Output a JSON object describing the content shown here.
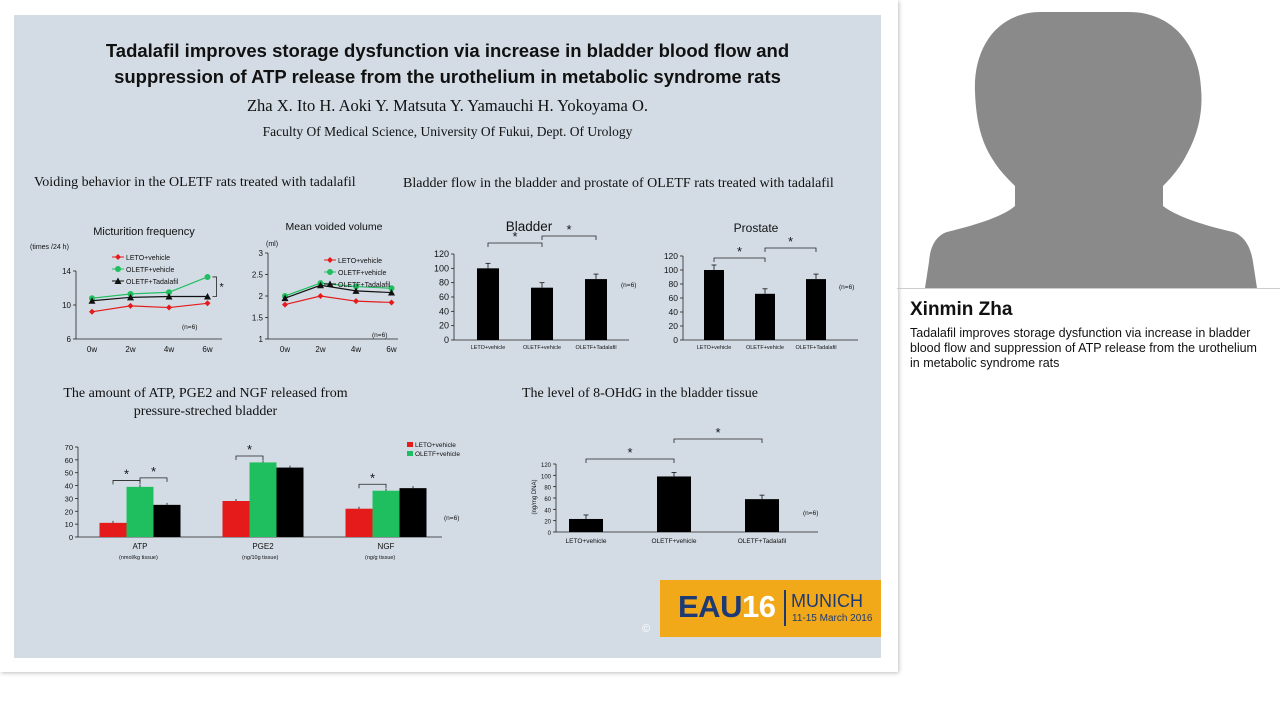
{
  "slide": {
    "title_line1": "Tadalafil improves storage dysfunction via increase in bladder blood flow and",
    "title_line2": "suppression of ATP release from the urothelium in metabolic syndrome rats",
    "authors": "Zha X.  Ito H.   Aoki Y.  Matsuta Y.  Yamauchi H.  Yokoyama O.",
    "affiliation": "Faculty Of Medical Science, University Of Fukui, Dept. Of Urology",
    "section_voiding": "Voiding behavior in the OLETF rats treated with tadalafil",
    "section_bloodflow": "Bladder flow in the bladder and prostate of OLETF rats treated with tadalafil",
    "section_release_line1": "The amount of ATP, PGE2 and NGF released from",
    "section_release_line2": "pressure-streched bladder",
    "section_ohdg": "The level of 8-OHdG in the bladder tissue",
    "copyright": "©"
  },
  "logo": {
    "eau": "EAU",
    "num": "16",
    "city": "MUNICH",
    "date": "11-15 March 2016"
  },
  "speaker": {
    "name": "Xinmin Zha",
    "description": "Tadalafil improves storage dysfunction via increase in bladder blood flow and suppression of ATP release from the urothelium in metabolic syndrome rats"
  },
  "colors": {
    "red": "#e51b1b",
    "green": "#1fbf5f",
    "black": "#111111",
    "bar": "#000000",
    "eau_orange": "#f2a919",
    "eau_navy": "#1d3a74"
  },
  "chart_data": [
    {
      "id": "micturition",
      "type": "line",
      "title": "Micturition frequency",
      "ylabel": "(times /24 h)",
      "note": "(n=6)",
      "x": [
        "0w",
        "2w",
        "4w",
        "6w"
      ],
      "ylim": [
        6,
        14
      ],
      "yticks": [
        6,
        10,
        14
      ],
      "series": [
        {
          "name": "LETO+vehicle",
          "color": "#e51b1b",
          "marker": "diamond",
          "values": [
            9.2,
            9.9,
            9.7,
            10.2
          ]
        },
        {
          "name": "OLETF+vehicle",
          "color": "#1fbf5f",
          "marker": "circle",
          "values": [
            10.8,
            11.3,
            11.5,
            13.3
          ]
        },
        {
          "name": "OLETF+Tadalafil",
          "color": "#111111",
          "marker": "triangle",
          "values": [
            10.5,
            10.9,
            11.0,
            11.0
          ]
        }
      ],
      "significance": "*"
    },
    {
      "id": "voided_volume",
      "type": "line",
      "title": "Mean voided volume",
      "ylabel": "(ml)",
      "note": "(n=6)",
      "x": [
        "0w",
        "2w",
        "4w",
        "6w"
      ],
      "ylim": [
        1,
        3
      ],
      "yticks": [
        1,
        1.5,
        2,
        2.5,
        3
      ],
      "series": [
        {
          "name": "LETO+vehicle",
          "color": "#e51b1b",
          "marker": "diamond",
          "values": [
            1.8,
            2.0,
            1.88,
            1.85
          ]
        },
        {
          "name": "OLETF+vehicle",
          "color": "#1fbf5f",
          "marker": "circle",
          "values": [
            2.0,
            2.3,
            2.22,
            2.18
          ]
        },
        {
          "name": "OLETF+Tadalafil",
          "color": "#111111",
          "marker": "triangle",
          "values": [
            1.95,
            2.25,
            2.12,
            2.08
          ]
        }
      ]
    },
    {
      "id": "bladder_flow",
      "type": "bar",
      "title": "Bladder",
      "categories": [
        "LETO+vehicle",
        "OLETF+vehicle",
        "OLETF+Tadalafil"
      ],
      "values": [
        100,
        73,
        85
      ],
      "ylim": [
        0,
        120
      ],
      "yticks": [
        0,
        20,
        40,
        60,
        80,
        100,
        120
      ],
      "note": "(n=6)",
      "significance": [
        "*",
        "*"
      ]
    },
    {
      "id": "prostate_flow",
      "type": "bar",
      "title": "Prostate",
      "categories": [
        "LETO+vehicle",
        "OLETF+vehicle",
        "OLETF+Tadalafil"
      ],
      "values": [
        100,
        66,
        87
      ],
      "ylim": [
        0,
        120
      ],
      "yticks": [
        0,
        20,
        40,
        60,
        80,
        100,
        120
      ],
      "note": "(n=6)",
      "significance": [
        "*",
        "*"
      ]
    },
    {
      "id": "release",
      "type": "bar",
      "categories": [
        "ATP",
        "PGE2",
        "NGF"
      ],
      "units": [
        "(nmol/kg  tissue)",
        "(ng/10g  tissue)",
        "(ng/g  tissue)"
      ],
      "ylim": [
        0,
        70
      ],
      "yticks": [
        0,
        10,
        20,
        30,
        40,
        50,
        60,
        70
      ],
      "note": "(n=6)",
      "legend": [
        "LETO+vehicle",
        "OLETF+vehicle"
      ],
      "series": [
        {
          "name": "LETO+vehicle",
          "color": "#e51b1b",
          "values": [
            11,
            28,
            22
          ]
        },
        {
          "name": "OLETF+vehicle",
          "color": "#1fbf5f",
          "values": [
            39,
            58,
            36
          ]
        },
        {
          "color": "#000000",
          "values": [
            25,
            54,
            38
          ]
        }
      ],
      "significance": [
        "*",
        "*",
        "*",
        "*"
      ]
    },
    {
      "id": "ohdg",
      "type": "bar",
      "ylabel": "(ng/mg  DNA)",
      "categories": [
        "LETO+vehicle",
        "OLETF+vehicle",
        "OLETF+Tadalafil"
      ],
      "values": [
        23,
        98,
        58
      ],
      "ylim": [
        0,
        120
      ],
      "yticks": [
        0,
        20,
        40,
        60,
        80,
        100,
        120
      ],
      "note": "(n=6)",
      "significance": [
        "*",
        "*"
      ]
    }
  ]
}
